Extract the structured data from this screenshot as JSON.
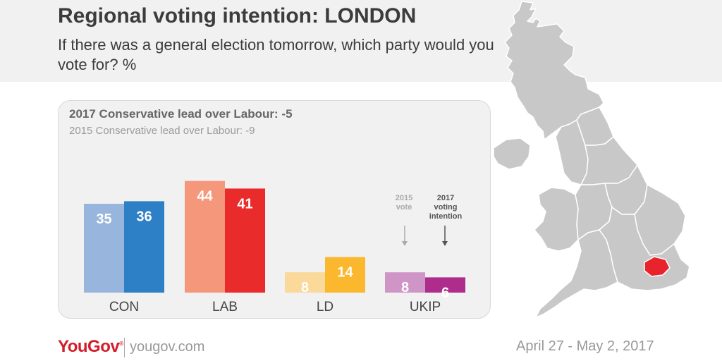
{
  "header": {
    "title": "Regional voting intention: LONDON",
    "subtitle": "If there was a general election tomorrow, which party would you vote for? %"
  },
  "panel": {
    "lead_2017": "2017 Conservative lead over Labour: -5",
    "lead_2015": "2015 Conservative lead over Labour: -9"
  },
  "chart_data": {
    "type": "bar",
    "categories": [
      "CON",
      "LAB",
      "LD",
      "UKIP"
    ],
    "series": [
      {
        "name": "2015 vote",
        "values": [
          35,
          44,
          8,
          8
        ],
        "colors": [
          "#98b5dd",
          "#f4977a",
          "#fbd99a",
          "#cf95c6"
        ]
      },
      {
        "name": "2017 voting intention",
        "values": [
          36,
          41,
          14,
          6
        ],
        "colors": [
          "#2e80c6",
          "#e92b2b",
          "#fbb82e",
          "#ad2c8c"
        ]
      }
    ],
    "ylim": [
      0,
      50
    ],
    "annotations": {
      "first_series": [
        "2015",
        "vote"
      ],
      "second_series": [
        "2017",
        "voting",
        "intention"
      ]
    }
  },
  "footer": {
    "logo": "YouGov",
    "logo_mark": "®",
    "site": "yougov.com",
    "date": "April 27 - May 2, 2017"
  },
  "map": {
    "base_color": "#c8c8c8",
    "highlight_region": "London",
    "highlight_color": "#e8232b"
  }
}
